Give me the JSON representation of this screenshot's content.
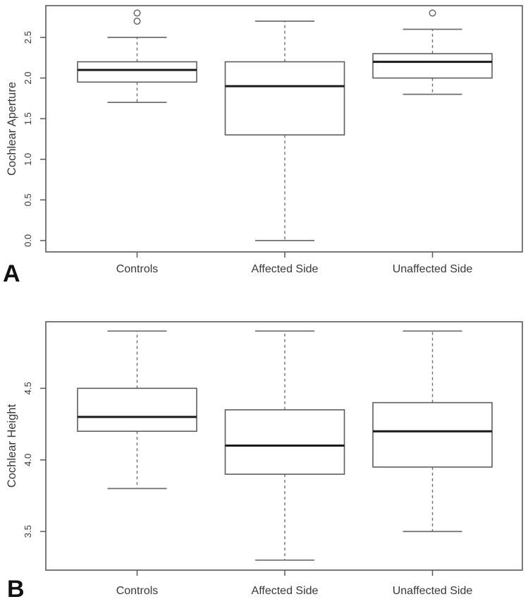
{
  "figure": {
    "description": "Two-panel R-style boxplot figure comparing cochlear measurements",
    "background": "#ffffff"
  },
  "colors": {
    "frame": "#595959",
    "box_stroke": "#5e5e5e",
    "whisker": "#6e6e6e",
    "median": "#1a1a1a",
    "text": "#383838",
    "panel_letter": "#111111",
    "outlier_stroke": "#5e5e5e"
  },
  "chart_data": [
    {
      "type": "boxplot",
      "panel_label": "A",
      "ylabel": "Cochlear Aperture",
      "categories": [
        "Controls",
        "Affected Side",
        "Unaffected Side"
      ],
      "ytick_labels": [
        "0.0",
        "0.5",
        "1.0",
        "1.5",
        "2.0",
        "2.5"
      ],
      "ylim": [
        -0.14,
        2.891
      ],
      "grid": false,
      "series": [
        {
          "category": "Controls",
          "whisker_low": 1.7,
          "q1": 1.95,
          "median": 2.1,
          "q3": 2.2,
          "whisker_high": 2.5,
          "outliers": [
            2.7,
            2.8
          ]
        },
        {
          "category": "Affected Side",
          "whisker_low": 0.0,
          "q1": 1.3,
          "median": 1.9,
          "q3": 2.2,
          "whisker_high": 2.7,
          "outliers": []
        },
        {
          "category": "Unaffected Side",
          "whisker_low": 1.8,
          "q1": 2.0,
          "median": 2.2,
          "q3": 2.3,
          "whisker_high": 2.6,
          "outliers": [
            2.8
          ]
        }
      ]
    },
    {
      "type": "boxplot",
      "panel_label": "B",
      "ylabel": "Cochlear Height",
      "categories": [
        "Controls",
        "Affected Side",
        "Unaffected Side"
      ],
      "ytick_labels": [
        "3.5",
        "4.0",
        "4.5"
      ],
      "ylim": [
        3.23,
        4.965
      ],
      "grid": false,
      "series": [
        {
          "category": "Controls",
          "whisker_low": 3.8,
          "q1": 4.2,
          "median": 4.3,
          "q3": 4.5,
          "whisker_high": 4.9,
          "outliers": []
        },
        {
          "category": "Affected Side",
          "whisker_low": 3.3,
          "q1": 3.9,
          "median": 4.1,
          "q3": 4.35,
          "whisker_high": 4.9,
          "outliers": []
        },
        {
          "category": "Unaffected Side",
          "whisker_low": 3.5,
          "q1": 3.95,
          "median": 4.2,
          "q3": 4.4,
          "whisker_high": 4.9,
          "outliers": []
        }
      ]
    }
  ]
}
